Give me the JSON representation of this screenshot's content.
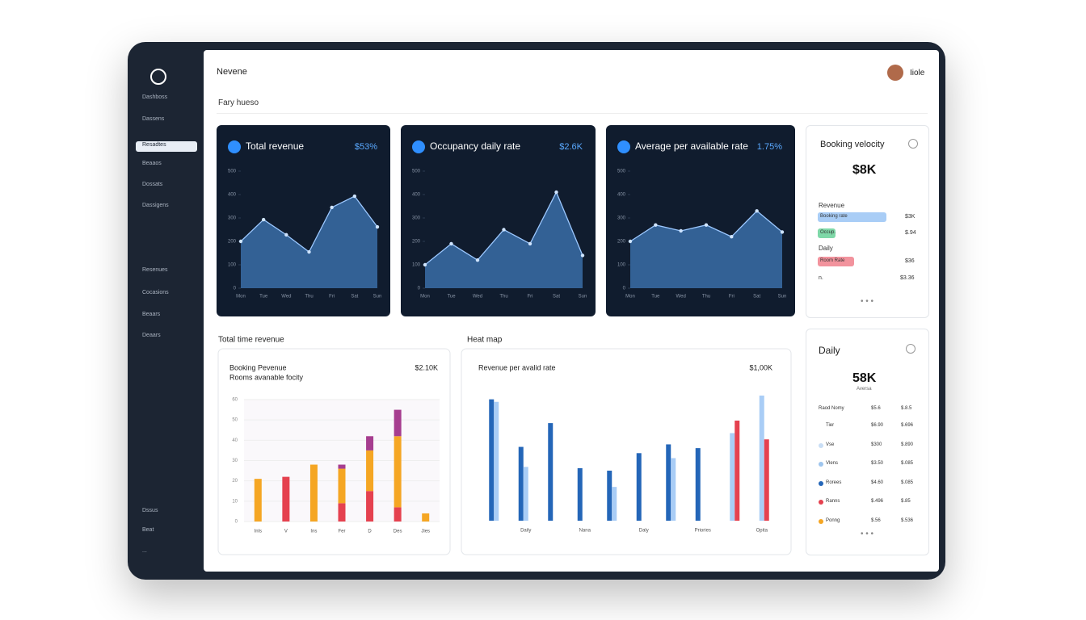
{
  "header": {
    "title": "Nevene",
    "subtitle": "Fary hueso",
    "user": "Iiole"
  },
  "sidebar": [
    "Dashboss",
    "Dassens",
    "Resadtes",
    "Beaaos",
    "Dossats",
    "Dassigens",
    "Resenues",
    "Cocasions",
    "Beaars",
    "Deaars",
    "Dssus",
    "Beat",
    "..."
  ],
  "velocity": {
    "title": "Booking velocity",
    "value": "$8K",
    "section1": "Revenue",
    "section2": "Daily",
    "rows": [
      {
        "label": "Booking rate",
        "width": 85,
        "color": "#a9cdf6",
        "value": "$3K"
      },
      {
        "label": "Occup.",
        "width": 22,
        "color": "#7fd8a8",
        "value": "$.94"
      },
      {
        "label": "Room Rate",
        "width": 45,
        "color": "#f2939d",
        "value": "$36"
      }
    ],
    "footer_label": "n.",
    "footer_value": "$3.36"
  },
  "daily": {
    "title": "Daily",
    "value": "58K",
    "caption": "Aversa",
    "table": {
      "header": [
        "Raod Nomy",
        "$5.6",
        "$.8.5"
      ],
      "rows": [
        [
          "Tier",
          "$6.90",
          "$.696"
        ],
        [
          "Vse",
          "$300",
          "$.890"
        ],
        [
          "Vlens",
          "$3.50",
          "$.085"
        ],
        [
          "Rorees",
          "$4.60",
          "$.085"
        ],
        [
          "Ranns",
          "$.496",
          "$.85"
        ],
        [
          "Ponng",
          "$.56",
          "$.536"
        ]
      ],
      "colors": [
        null,
        "#c9def5",
        "#9ec5ee",
        "#2466b8",
        "#e5414f",
        "#f5a623"
      ]
    }
  },
  "chart_data": [
    {
      "type": "area",
      "title": "Total revenue",
      "value_text": "$53%",
      "color": "#3f78b8",
      "categories": [
        "Mon",
        "Tue",
        "Wed",
        "Thu",
        "Fri",
        "Sat",
        "Sun"
      ],
      "values": [
        200,
        293,
        228,
        155,
        345,
        393,
        262
      ],
      "ylim": [
        0,
        500
      ],
      "yticks": [
        0,
        100,
        200,
        300,
        400,
        500
      ]
    },
    {
      "type": "area",
      "title": "Occupancy daily rate",
      "value_text": "$2.6K",
      "color": "#3f78b8",
      "categories": [
        "Mon",
        "Tue",
        "Wed",
        "Thu",
        "Fri",
        "Sat",
        "Sun"
      ],
      "values": [
        100,
        190,
        120,
        250,
        190,
        410,
        140
      ],
      "ylim": [
        0,
        500
      ],
      "yticks": [
        0,
        100,
        200,
        300,
        400,
        500
      ]
    },
    {
      "type": "area",
      "title": "Average per available rate",
      "value_text": "1.75%",
      "color": "#3f78b8",
      "categories": [
        "Mon",
        "Tue",
        "Wed",
        "Thu",
        "Fri",
        "Sat",
        "Sun"
      ],
      "values": [
        200,
        270,
        245,
        270,
        220,
        330,
        240
      ],
      "ylim": [
        0,
        500
      ],
      "yticks": [
        0,
        100,
        200,
        300,
        400,
        500
      ]
    },
    {
      "type": "stacked_bar",
      "section_title": "Total time revenue",
      "title": "Booking Pevenue",
      "subtitle": "Rooms avanable focity",
      "value_text": "$2.10K",
      "categories": [
        "Inls",
        "V",
        "Ins",
        "Fer",
        "D",
        "Des",
        "Jies"
      ],
      "series": [
        {
          "color": "#e5414f",
          "values": [
            0,
            22,
            0,
            9,
            15,
            7,
            0
          ]
        },
        {
          "color": "#f5a623",
          "values": [
            21,
            0,
            28,
            17,
            20,
            35,
            4
          ]
        },
        {
          "color": "#a63d8f",
          "values": [
            0,
            0,
            0,
            2,
            7,
            13,
            0
          ]
        }
      ],
      "ylim": [
        0,
        60
      ],
      "yticks": [
        0,
        10,
        20,
        30,
        40,
        50,
        60
      ]
    },
    {
      "type": "grouped_bar",
      "section_title": "Heat map",
      "title": "Revenue per avalid rate",
      "value_text": "$1,00K",
      "categories": [
        null,
        "Daily",
        null,
        "Nana",
        null,
        "Daly",
        null,
        "Priories",
        null,
        "Opita"
      ],
      "series": [
        {
          "color": "#2466b8",
          "values": [
            97,
            59,
            78,
            42,
            40,
            54,
            61,
            58,
            0,
            0
          ]
        },
        {
          "color": "#a9cdf6",
          "values": [
            95,
            43,
            0,
            0,
            27,
            0,
            50,
            0,
            70,
            100
          ]
        },
        {
          "color": "#e5414f",
          "values": [
            0,
            0,
            0,
            0,
            0,
            0,
            0,
            0,
            80,
            65
          ]
        }
      ],
      "ylim": [
        0,
        100
      ]
    }
  ]
}
